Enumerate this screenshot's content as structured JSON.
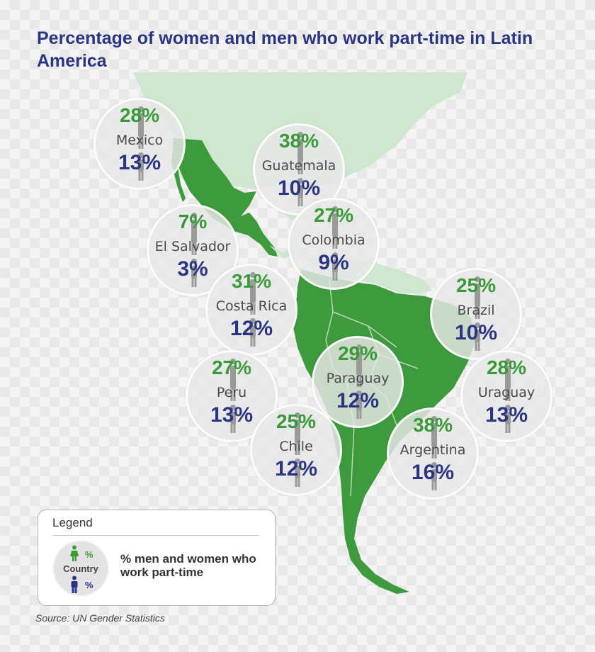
{
  "title": "Percentage of women and men who work part-time in Latin America",
  "colors": {
    "highlight_green": "#3a9a3a",
    "men_blue": "#2b3582",
    "map_green": "#3d9a3d",
    "map_pale_green": "#cfe7cf"
  },
  "countries": [
    {
      "name": "Mexico",
      "women": "28%",
      "men": "13%"
    },
    {
      "name": "Guatemala",
      "women": "38%",
      "men": "10%"
    },
    {
      "name": "El Salvador",
      "women": "7%",
      "men": "3%"
    },
    {
      "name": "Colombia",
      "women": "27%",
      "men": "9%"
    },
    {
      "name": "Costa Rica",
      "women": "31%",
      "men": "12%"
    },
    {
      "name": "Brazil",
      "women": "25%",
      "men": "10%"
    },
    {
      "name": "Peru",
      "women": "27%",
      "men": "13%"
    },
    {
      "name": "Paraguay",
      "women": "29%",
      "men": "12%"
    },
    {
      "name": "Uraguay",
      "women": "28%",
      "men": "13%"
    },
    {
      "name": "Chile",
      "women": "25%",
      "men": "12%"
    },
    {
      "name": "Argentina",
      "women": "38%",
      "men": "16%"
    }
  ],
  "legend": {
    "title": "Legend",
    "sample_women": "%",
    "sample_country": "Country",
    "sample_men": "%",
    "description": "% men and women who work part-time",
    "icons": [
      "woman-icon",
      "man-icon"
    ]
  },
  "source": "Source: UN Gender Statistics"
}
